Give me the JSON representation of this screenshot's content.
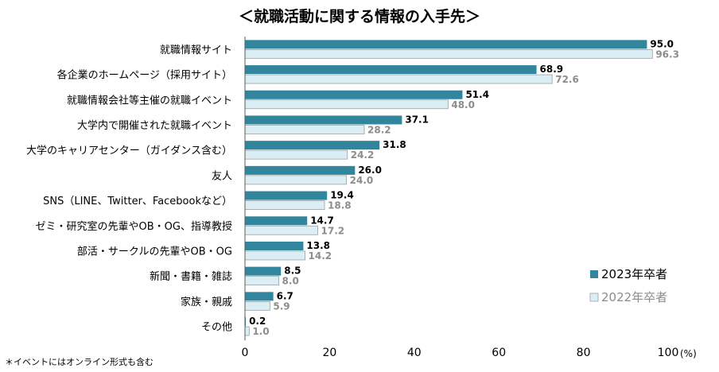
{
  "chart_data": {
    "type": "bar",
    "orientation": "horizontal",
    "title": "＜就職活動に関する情報の入手先＞",
    "categories": [
      "就職情報サイト",
      "各企業のホームページ（採用サイト）",
      "就職情報会社等主催の就職イベント",
      "大学内で開催された就職イベント",
      "大学のキャリアセンター（ガイダンス含む）",
      "友人",
      "SNS（LINE、Twitter、Facebookなど）",
      "ゼミ・研究室の先輩やOB・OG、指導教授",
      "部活・サークルの先輩やOB・OG",
      "新聞・書籍・雑誌",
      "家族・親戚",
      "その他"
    ],
    "series": [
      {
        "name": "2023年卒者",
        "color": "#31859c",
        "values": [
          95.0,
          68.9,
          51.4,
          37.1,
          31.8,
          26.0,
          19.4,
          14.7,
          13.8,
          8.5,
          6.7,
          0.2
        ]
      },
      {
        "name": "2022年卒者",
        "color": "#dbeef4",
        "values": [
          96.3,
          72.6,
          48.0,
          28.2,
          24.2,
          24.0,
          18.8,
          17.2,
          14.2,
          8.0,
          5.9,
          1.0
        ]
      }
    ],
    "xlim": [
      0,
      100
    ],
    "xticks": [
      "0",
      "20",
      "40",
      "60",
      "80",
      "100"
    ],
    "xunit": "(%)",
    "legend": "bottom-right",
    "grid": false
  },
  "footnote": "＊イベントにはオンライン形式も含む"
}
